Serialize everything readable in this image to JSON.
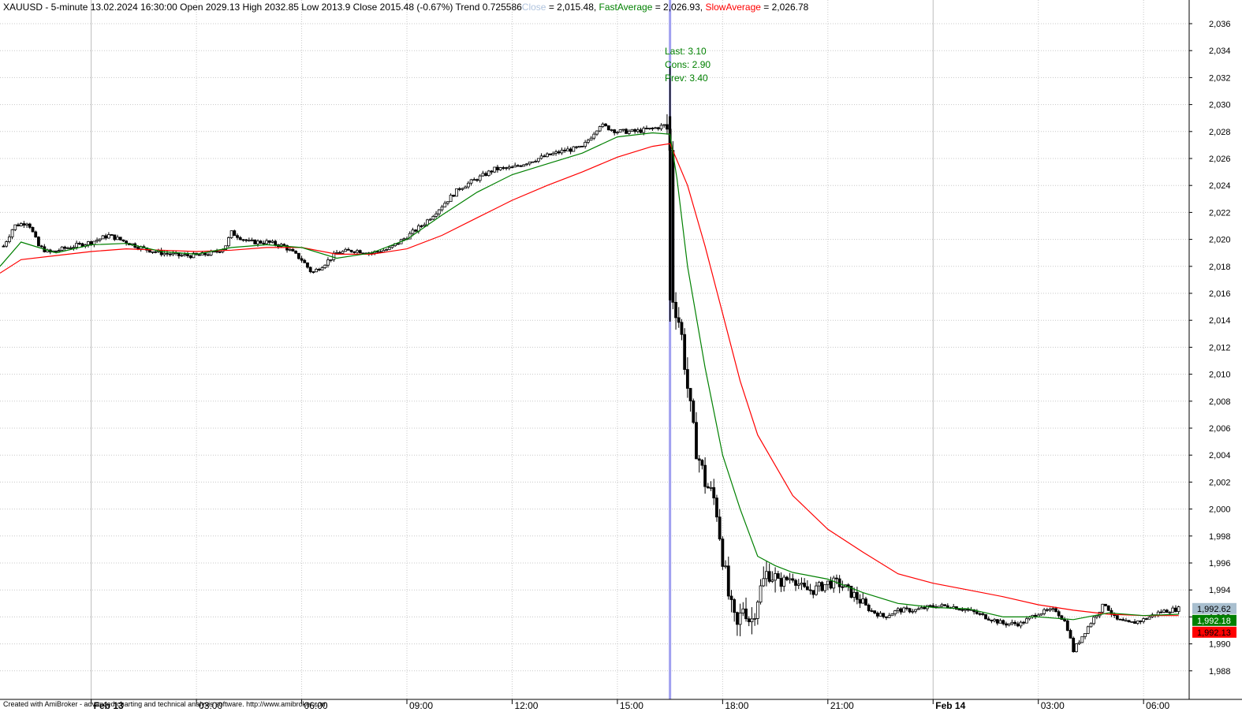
{
  "window": {
    "symbol": "XAUUSD",
    "interval": "5-minute",
    "bar_datetime": "13.02.2024 16:30:00"
  },
  "header": {
    "prefix": "XAUUSD - 5-minute 13.02.2024 16:30:00 Open 2029.13 High 2032.85 Low 2013.9 Close 2015.48 (-0.67%) Trend 0.725586",
    "close_label": "Close",
    "close_value": " = 2,015.48, ",
    "fast_label": "FastAverage",
    "fast_value": " = 2,026.93, ",
    "slow_label": "SlowAverage",
    "slow_value": " = 2,026.78"
  },
  "annotation": {
    "line1": "Last: 3.10",
    "line2": "Cons: 2.90",
    "line3": "Prev: 3.40"
  },
  "footer": "Created with AmiBroker - advanced charting and technical analysis software. http://www.amibroker.com",
  "colors": {
    "close": "#b0c4de",
    "fast": "#008000",
    "slow": "#ff0000",
    "candle": "#000000",
    "grid": "#c8c8c8",
    "event_line": "#a0a0f0",
    "last_price_box": "#a9bfcf"
  },
  "price_badges": {
    "last": "1,992.62",
    "fast": "1,992.18",
    "slow": "1,992.13"
  },
  "chart_data": {
    "type": "candlestick",
    "title": "XAUUSD - 5-minute",
    "ylim": [
      1987,
      2037
    ],
    "y_ticks": [
      "2,036",
      "2,034",
      "2,032",
      "2,030",
      "2,028",
      "2,026",
      "2,024",
      "2,022",
      "2,020",
      "2,018",
      "2,016",
      "2,014",
      "2,012",
      "2,010",
      "2,008",
      "2,006",
      "2,004",
      "2,002",
      "2,000",
      "1,998",
      "1,996",
      "1,994",
      "1,992",
      "1,990",
      "1,988"
    ],
    "y_tick_values": [
      2036,
      2034,
      2032,
      2030,
      2028,
      2026,
      2024,
      2022,
      2020,
      2018,
      2016,
      2014,
      2012,
      2010,
      2008,
      2006,
      2004,
      2002,
      2000,
      1998,
      1996,
      1994,
      1992,
      1990,
      1988
    ],
    "x_range_hours": [
      -2.6,
      31.3
    ],
    "x_ticks": [
      {
        "label": "Feb 13",
        "hour": 0,
        "bold": true
      },
      {
        "label": "03:00",
        "hour": 3,
        "bold": false
      },
      {
        "label": "06:00",
        "hour": 6,
        "bold": false
      },
      {
        "label": "09:00",
        "hour": 9,
        "bold": false
      },
      {
        "label": "12:00",
        "hour": 12,
        "bold": false
      },
      {
        "label": "15:00",
        "hour": 15,
        "bold": false
      },
      {
        "label": "18:00",
        "hour": 18,
        "bold": false
      },
      {
        "label": "21:00",
        "hour": 21,
        "bold": false
      },
      {
        "label": "Feb 14",
        "hour": 24,
        "bold": true
      },
      {
        "label": "03:00",
        "hour": 27,
        "bold": false
      },
      {
        "label": "06:00",
        "hour": 30,
        "bold": false
      }
    ],
    "event_hour": 16.5,
    "close_path": [
      [
        -2.5,
        2019.5
      ],
      [
        -2.2,
        2021.0
      ],
      [
        -1.8,
        2021.3
      ],
      [
        -1.5,
        2019.5
      ],
      [
        -1.2,
        2019.0
      ],
      [
        -0.8,
        2019.3
      ],
      [
        -0.5,
        2019.5
      ],
      [
        0,
        2019.8
      ],
      [
        0.5,
        2020.3
      ],
      [
        1.0,
        2019.8
      ],
      [
        1.5,
        2019.3
      ],
      [
        2.0,
        2019.0
      ],
      [
        2.5,
        2018.8
      ],
      [
        3.0,
        2018.8
      ],
      [
        3.5,
        2019.0
      ],
      [
        3.8,
        2019.4
      ],
      [
        4.0,
        2020.5
      ],
      [
        4.5,
        2019.8
      ],
      [
        5.0,
        2019.8
      ],
      [
        5.5,
        2019.5
      ],
      [
        6.0,
        2018.5
      ],
      [
        6.3,
        2017.5
      ],
      [
        6.7,
        2018.3
      ],
      [
        7.0,
        2019.0
      ],
      [
        7.5,
        2019.2
      ],
      [
        8.0,
        2019.0
      ],
      [
        8.5,
        2019.3
      ],
      [
        9.0,
        2020.2
      ],
      [
        9.5,
        2021.2
      ],
      [
        10.0,
        2022.5
      ],
      [
        10.5,
        2023.8
      ],
      [
        11.0,
        2024.5
      ],
      [
        11.5,
        2025.2
      ],
      [
        12.0,
        2025.3
      ],
      [
        12.5,
        2025.8
      ],
      [
        13.0,
        2026.2
      ],
      [
        13.5,
        2026.6
      ],
      [
        14.0,
        2026.8
      ],
      [
        14.5,
        2028.5
      ],
      [
        15.0,
        2028.0
      ],
      [
        15.5,
        2028.0
      ],
      [
        16.0,
        2028.2
      ],
      [
        16.4,
        2028.5
      ],
      [
        16.5,
        2026.5
      ],
      [
        16.55,
        2016.0
      ],
      [
        16.8,
        2013.5
      ],
      [
        17.0,
        2009.0
      ],
      [
        17.2,
        2005.0
      ],
      [
        17.5,
        2002.0
      ],
      [
        17.8,
        2000.5
      ],
      [
        18.0,
        1996.5
      ],
      [
        18.2,
        1993.0
      ],
      [
        18.4,
        1991.0
      ],
      [
        18.6,
        1993.0
      ],
      [
        18.8,
        1991.5
      ],
      [
        19.0,
        1993.5
      ],
      [
        19.3,
        1995.5
      ],
      [
        19.6,
        1994.5
      ],
      [
        20.0,
        1995.0
      ],
      [
        20.3,
        1994.0
      ],
      [
        20.6,
        1994.0
      ],
      [
        21.0,
        1994.5
      ],
      [
        21.3,
        1994.5
      ],
      [
        21.8,
        1993.5
      ],
      [
        22.2,
        1992.5
      ],
      [
        22.6,
        1992.0
      ],
      [
        23.0,
        1992.5
      ],
      [
        23.5,
        1992.5
      ],
      [
        24.0,
        1992.8
      ],
      [
        24.5,
        1992.8
      ],
      [
        25.0,
        1992.5
      ],
      [
        25.5,
        1992.0
      ],
      [
        26.0,
        1991.5
      ],
      [
        26.5,
        1991.5
      ],
      [
        27.0,
        1992.3
      ],
      [
        27.5,
        1992.5
      ],
      [
        27.8,
        1991.5
      ],
      [
        28.0,
        1989.5
      ],
      [
        28.3,
        1990.8
      ],
      [
        28.6,
        1992.0
      ],
      [
        28.9,
        1993.0
      ],
      [
        29.2,
        1991.8
      ],
      [
        29.6,
        1991.5
      ],
      [
        30.0,
        1991.8
      ],
      [
        30.5,
        1992.4
      ],
      [
        31.0,
        1992.6
      ]
    ],
    "fast_average": [
      [
        -2.6,
        2018.0
      ],
      [
        -2,
        2019.8
      ],
      [
        -1,
        2019.0
      ],
      [
        0,
        2019.6
      ],
      [
        1,
        2019.7
      ],
      [
        2,
        2019.1
      ],
      [
        3,
        2018.9
      ],
      [
        4,
        2019.4
      ],
      [
        5,
        2019.6
      ],
      [
        6,
        2019.4
      ],
      [
        7,
        2018.6
      ],
      [
        8,
        2019.0
      ],
      [
        9,
        2020.0
      ],
      [
        10,
        2021.8
      ],
      [
        11,
        2023.5
      ],
      [
        12,
        2024.8
      ],
      [
        13,
        2025.6
      ],
      [
        14,
        2026.4
      ],
      [
        15,
        2027.6
      ],
      [
        16,
        2027.9
      ],
      [
        16.5,
        2027.8
      ],
      [
        16.7,
        2024.5
      ],
      [
        17,
        2018.0
      ],
      [
        17.5,
        2010.5
      ],
      [
        18,
        2004.0
      ],
      [
        18.5,
        2000.0
      ],
      [
        19,
        1996.5
      ],
      [
        19.5,
        1995.8
      ],
      [
        20,
        1995.3
      ],
      [
        21,
        1994.8
      ],
      [
        22,
        1993.8
      ],
      [
        23,
        1993.0
      ],
      [
        24,
        1992.7
      ],
      [
        25,
        1992.6
      ],
      [
        26,
        1992.0
      ],
      [
        27,
        1992.0
      ],
      [
        28,
        1991.8
      ],
      [
        29,
        1992.3
      ],
      [
        30,
        1992.1
      ],
      [
        31,
        1992.2
      ]
    ],
    "slow_average": [
      [
        -2.6,
        2017.5
      ],
      [
        -2,
        2018.5
      ],
      [
        -1,
        2018.8
      ],
      [
        0,
        2019.1
      ],
      [
        1,
        2019.3
      ],
      [
        2,
        2019.2
      ],
      [
        3,
        2019.1
      ],
      [
        4,
        2019.2
      ],
      [
        5,
        2019.4
      ],
      [
        6,
        2019.4
      ],
      [
        7,
        2018.9
      ],
      [
        8,
        2018.9
      ],
      [
        9,
        2019.3
      ],
      [
        10,
        2020.3
      ],
      [
        11,
        2021.6
      ],
      [
        12,
        2022.9
      ],
      [
        13,
        2024.0
      ],
      [
        14,
        2025.0
      ],
      [
        15,
        2026.1
      ],
      [
        16,
        2026.9
      ],
      [
        16.5,
        2027.1
      ],
      [
        17,
        2024.0
      ],
      [
        17.5,
        2019.5
      ],
      [
        18,
        2014.5
      ],
      [
        18.5,
        2009.5
      ],
      [
        19,
        2005.5
      ],
      [
        20,
        2001.0
      ],
      [
        21,
        1998.5
      ],
      [
        22,
        1996.8
      ],
      [
        23,
        1995.2
      ],
      [
        24,
        1994.5
      ],
      [
        25,
        1994.0
      ],
      [
        26,
        1993.5
      ],
      [
        27,
        1992.9
      ],
      [
        28,
        1992.5
      ],
      [
        29,
        1992.2
      ],
      [
        30,
        1992.1
      ],
      [
        31,
        1992.1
      ]
    ]
  }
}
